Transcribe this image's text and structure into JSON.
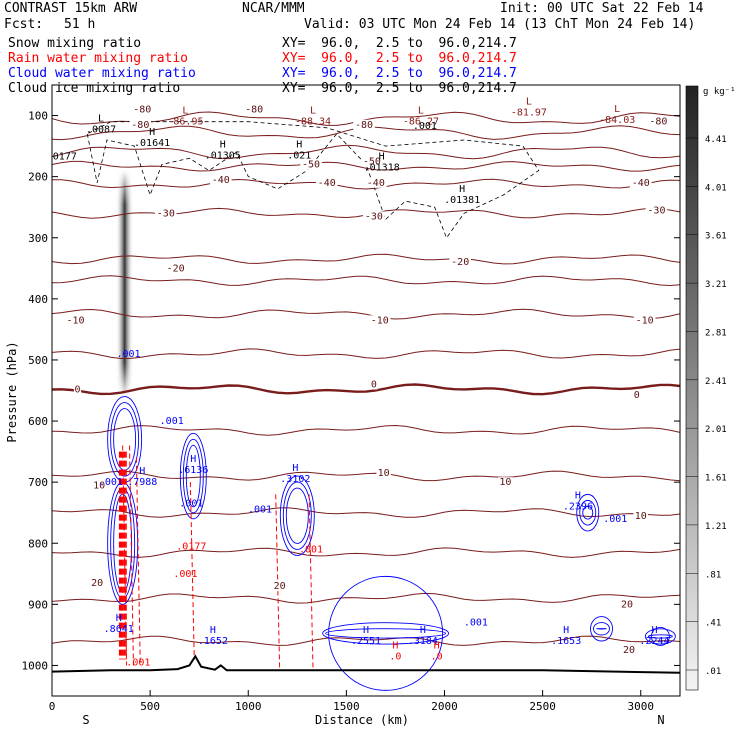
{
  "header": {
    "model": "CONTRAST 15km ARW",
    "org": "NCAR/MMM",
    "init": "Init: 00 UTC Sat 22 Feb 14",
    "fcst_label": "Fcst:",
    "fcst_value": "51 h",
    "valid": "Valid: 03 UTC Mon 24 Feb 14 (13 ChT Mon 24 Feb 14)",
    "fields": [
      {
        "name": "Snow mixing ratio",
        "color": "#000000",
        "xy": "XY=  96.0,  2.5 to  96.0,214.7"
      },
      {
        "name": "Rain water mixing ratio",
        "color": "#ff0000",
        "xy": "XY=  96.0,  2.5 to  96.0,214.7"
      },
      {
        "name": "Cloud water mixing ratio",
        "color": "#0000ff",
        "xy": "XY=  96.0,  2.5 to  96.0,214.7"
      },
      {
        "name": "Cloud ice mixing ratio",
        "color": "#000000",
        "xy": "XY=  96.0,  2.5 to  96.0,214.7"
      }
    ]
  },
  "chart_data": {
    "type": "contour cross-section",
    "xlabel": "Distance (km)",
    "ylabel": "Pressure (hPa)",
    "xlim": [
      0,
      3200
    ],
    "ylim": [
      1050,
      50
    ],
    "x_ticks": [
      0,
      500,
      1000,
      1500,
      2000,
      2500,
      3000
    ],
    "y_ticks": [
      100,
      200,
      300,
      400,
      500,
      600,
      700,
      800,
      900,
      1000
    ],
    "x_end_labels": {
      "left": "S",
      "right": "N"
    },
    "colorbar": {
      "unit": "g kg⁻¹",
      "min": 0.01,
      "max": 5.0,
      "tick_labels": [
        "4.41",
        "4.01",
        "3.61",
        "3.21",
        "2.81",
        "2.41",
        "2.01",
        "1.61",
        "1.21",
        ".81",
        ".41",
        ".01"
      ]
    },
    "temperature_contours": [
      {
        "level": -80,
        "label": "-80",
        "p": 105
      },
      {
        "level": -70,
        "label": "",
        "p": 128
      },
      {
        "level": -60,
        "label": "",
        "p": 160
      },
      {
        "level": -50,
        "label": "-50",
        "p": 183
      },
      {
        "level": -40,
        "label": "-40",
        "p": 212
      },
      {
        "level": -30,
        "label": "-30",
        "p": 260
      },
      {
        "level": -20,
        "label": "-20",
        "p": 335
      },
      {
        "level": -15,
        "label": "",
        "p": 370
      },
      {
        "level": -10,
        "label": "-10",
        "p": 425
      },
      {
        "level": -5,
        "label": "",
        "p": 490
      },
      {
        "level": 0,
        "label": "0",
        "p": 548,
        "bold": true
      },
      {
        "level": 5,
        "label": "",
        "p": 615
      },
      {
        "level": 10,
        "label": "10",
        "p": 690
      },
      {
        "level": 12,
        "label": "",
        "p": 750
      },
      {
        "level": 15,
        "label": "",
        "p": 815
      },
      {
        "level": 20,
        "label": "20",
        "p": 890
      },
      {
        "level": 25,
        "label": "",
        "p": 960
      }
    ],
    "temperature_labels": [
      {
        "text": "-80",
        "x": 450,
        "p": 120
      },
      {
        "text": "-80",
        "x": 1590,
        "p": 120
      },
      {
        "text": "-80",
        "x": 3090,
        "p": 115
      },
      {
        "text": "-80",
        "x": 1030,
        "p": 95
      },
      {
        "text": "-80",
        "x": 460,
        "p": 95
      },
      {
        "text": "-50",
        "x": 1320,
        "p": 185
      },
      {
        "text": "-50",
        "x": 1630,
        "p": 180
      },
      {
        "text": "-40",
        "x": 860,
        "p": 210
      },
      {
        "text": "-40",
        "x": 1400,
        "p": 215
      },
      {
        "text": "-40",
        "x": 1650,
        "p": 215
      },
      {
        "text": "-40",
        "x": 3000,
        "p": 215
      },
      {
        "text": "-30",
        "x": 580,
        "p": 265
      },
      {
        "text": "-30",
        "x": 1640,
        "p": 270
      },
      {
        "text": "-30",
        "x": 3080,
        "p": 260
      },
      {
        "text": "-20",
        "x": 630,
        "p": 355
      },
      {
        "text": "-20",
        "x": 2080,
        "p": 345
      },
      {
        "text": "-10",
        "x": 120,
        "p": 440
      },
      {
        "text": "-10",
        "x": 1670,
        "p": 440
      },
      {
        "text": "-10",
        "x": 3020,
        "p": 440
      },
      {
        "text": "0",
        "x": 130,
        "p": 553
      },
      {
        "text": "0",
        "x": 1640,
        "p": 545
      },
      {
        "text": "0",
        "x": 2980,
        "p": 562
      },
      {
        "text": "10",
        "x": 240,
        "p": 710
      },
      {
        "text": "10",
        "x": 1690,
        "p": 690
      },
      {
        "text": "10",
        "x": 2310,
        "p": 705
      },
      {
        "text": "10",
        "x": 3000,
        "p": 760
      },
      {
        "text": "20",
        "x": 230,
        "p": 870
      },
      {
        "text": "20",
        "x": 1160,
        "p": 875
      },
      {
        "text": "20",
        "x": 2930,
        "p": 905
      },
      {
        "text": "20",
        "x": 2940,
        "p": 980
      }
    ],
    "extrema_labels": [
      {
        "marker": "L",
        "value": ".0087",
        "x": 250,
        "p": 128,
        "color": "#000000"
      },
      {
        "marker": "L",
        "value": "-86.95",
        "x": 680,
        "p": 115,
        "color": "#8b1a1a"
      },
      {
        "marker": "L",
        "value": "-88.34",
        "x": 1330,
        "p": 115,
        "color": "#8b1a1a"
      },
      {
        "marker": "L",
        "value": "-86.27",
        "x": 1880,
        "p": 115,
        "color": "#8b1a1a"
      },
      {
        "marker": "L",
        "value": "-81.97",
        "x": 2430,
        "p": 100,
        "color": "#8b1a1a"
      },
      {
        "marker": "L",
        "value": "-84.03",
        "x": 2880,
        "p": 112,
        "color": "#8b1a1a"
      },
      {
        "marker": "H",
        "value": ".01641",
        "x": 510,
        "p": 150,
        "color": "#000000"
      },
      {
        "marker": "H",
        "value": ".01305",
        "x": 870,
        "p": 170,
        "color": "#000000"
      },
      {
        "marker": "H",
        "value": ".021",
        "x": 1260,
        "p": 170,
        "color": "#000000"
      },
      {
        "marker": "H",
        "value": ".01318",
        "x": 1680,
        "p": 190,
        "color": "#000000"
      },
      {
        "marker": "H",
        "value": ".01381",
        "x": 2090,
        "p": 243,
        "color": "#000000"
      },
      {
        "marker": "",
        "value": ".0177",
        "x": 50,
        "p": 172,
        "color": "#000000"
      },
      {
        "marker": "",
        "value": ".001",
        "x": 1900,
        "p": 122,
        "color": "#000000"
      },
      {
        "marker": "H",
        "value": ".7988",
        "x": 460,
        "p": 705,
        "color": "#0000ff"
      },
      {
        "marker": "H",
        "value": ".6136",
        "x": 720,
        "p": 685,
        "color": "#0000ff"
      },
      {
        "marker": "H",
        "value": ".3102",
        "x": 1240,
        "p": 700,
        "color": "#0000ff"
      },
      {
        "marker": "H",
        "value": ".2396",
        "x": 2680,
        "p": 745,
        "color": "#0000ff"
      },
      {
        "marker": "H",
        "value": ".8641",
        "x": 340,
        "p": 945,
        "color": "#0000ff"
      },
      {
        "marker": "H",
        "value": ".1652",
        "x": 820,
        "p": 965,
        "color": "#0000ff"
      },
      {
        "marker": "H",
        "value": ".2551",
        "x": 1600,
        "p": 965,
        "color": "#0000ff"
      },
      {
        "marker": "H",
        "value": ".3184",
        "x": 1890,
        "p": 965,
        "color": "#0000ff"
      },
      {
        "marker": "H",
        "value": ".1653",
        "x": 2620,
        "p": 965,
        "color": "#0000ff"
      },
      {
        "marker": "H",
        "value": ".2244",
        "x": 3070,
        "p": 965,
        "color": "#0000ff"
      },
      {
        "marker": "",
        "value": ".001",
        "x": 610,
        "p": 605,
        "color": "#0000ff"
      },
      {
        "marker": "",
        "value": ".001",
        "x": 390,
        "p": 495,
        "color": "#0000ff"
      },
      {
        "marker": "",
        "value": ".001",
        "x": 710,
        "p": 740,
        "color": "#0000ff"
      },
      {
        "marker": "",
        "value": ".001",
        "x": 1060,
        "p": 750,
        "color": "#0000ff"
      },
      {
        "marker": "",
        "value": ".001",
        "x": 2870,
        "p": 765,
        "color": "#0000ff"
      },
      {
        "marker": "",
        "value": ".001",
        "x": 2160,
        "p": 935,
        "color": "#0000ff"
      },
      {
        "marker": "",
        "value": ".001",
        "x": 300,
        "p": 705,
        "color": "#0000ff"
      },
      {
        "marker": "",
        "value": ".0177",
        "x": 710,
        "p": 810,
        "color": "#ff0000"
      },
      {
        "marker": "",
        "value": ".001",
        "x": 680,
        "p": 855,
        "color": "#ff0000"
      },
      {
        "marker": "",
        "value": ".001",
        "x": 1320,
        "p": 815,
        "color": "#ff0000"
      },
      {
        "marker": "",
        "value": ".001",
        "x": 440,
        "p": 1000,
        "color": "#ff0000"
      },
      {
        "marker": "H",
        "value": ".0",
        "x": 1750,
        "p": 990,
        "color": "#ff0000"
      },
      {
        "marker": "H",
        "value": ".0",
        "x": 1960,
        "p": 990,
        "color": "#ff0000"
      }
    ],
    "surface": [
      {
        "x": 0,
        "p": 1010
      },
      {
        "x": 300,
        "p": 1008
      },
      {
        "x": 500,
        "p": 1008
      },
      {
        "x": 640,
        "p": 1006
      },
      {
        "x": 700,
        "p": 1000
      },
      {
        "x": 730,
        "p": 985
      },
      {
        "x": 760,
        "p": 1002
      },
      {
        "x": 830,
        "p": 1007
      },
      {
        "x": 860,
        "p": 1000
      },
      {
        "x": 890,
        "p": 1008
      },
      {
        "x": 1500,
        "p": 1008
      },
      {
        "x": 2500,
        "p": 1008
      },
      {
        "x": 3200,
        "p": 1012
      }
    ],
    "snow_column": {
      "x_center": 370,
      "width_km": 90,
      "p_top": 190,
      "p_bottom": 560,
      "peak_value": 4.4
    }
  }
}
